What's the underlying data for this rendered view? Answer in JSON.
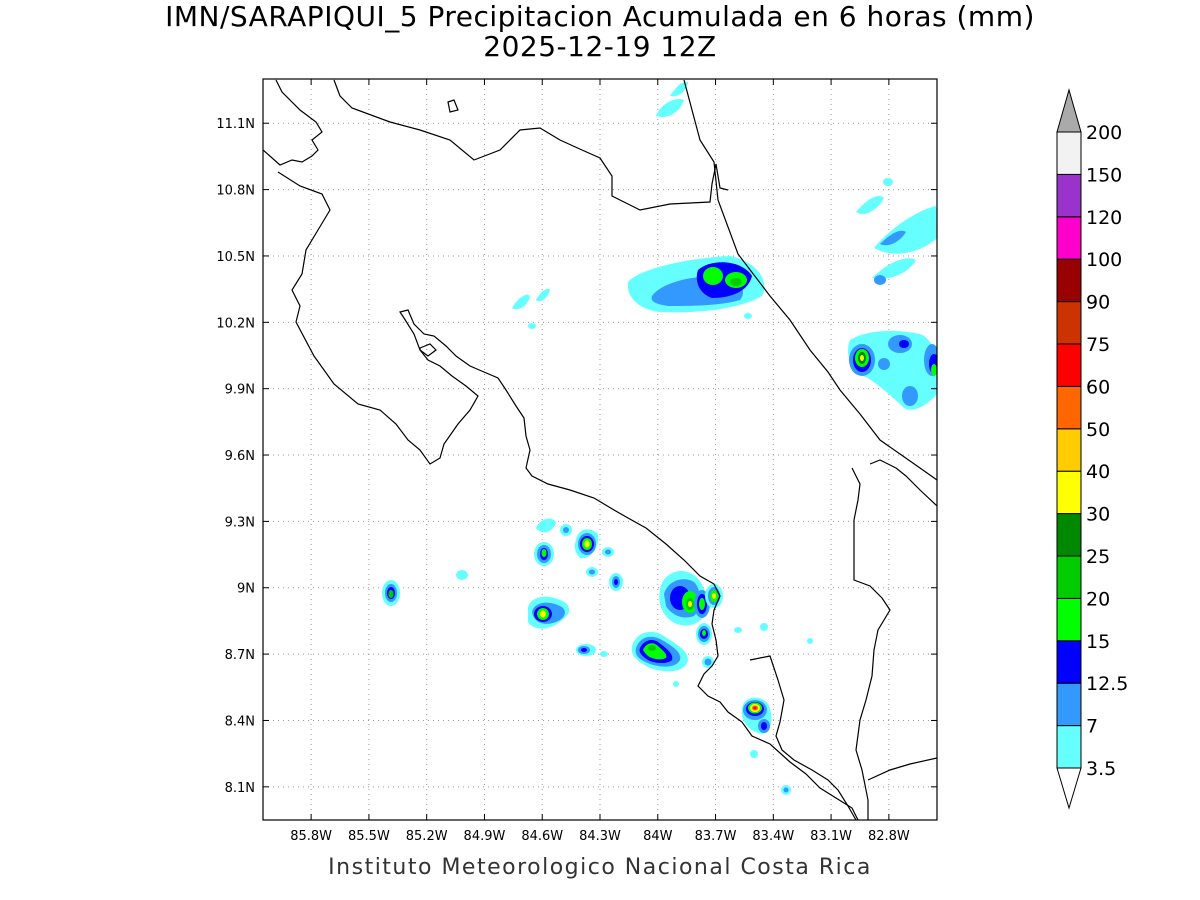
{
  "title": {
    "line1": "IMN/SARAPIQUI_5 Precipitacion Acumulada en 6 horas (mm)",
    "line2": "2025-12-19 12Z"
  },
  "footer": "Instituto Meteorologico Nacional Costa Rica",
  "map": {
    "lon_range": [
      -86.05,
      -82.55
    ],
    "lat_range": [
      7.95,
      11.3
    ],
    "lon_ticks": [
      {
        "value": -85.8,
        "label": "85.8W"
      },
      {
        "value": -85.5,
        "label": "85.5W"
      },
      {
        "value": -85.2,
        "label": "85.2W"
      },
      {
        "value": -84.9,
        "label": "84.9W"
      },
      {
        "value": -84.6,
        "label": "84.6W"
      },
      {
        "value": -84.3,
        "label": "84.3W"
      },
      {
        "value": -84.0,
        "label": "84W"
      },
      {
        "value": -83.7,
        "label": "83.7W"
      },
      {
        "value": -83.4,
        "label": "83.4W"
      },
      {
        "value": -83.1,
        "label": "83.1W"
      },
      {
        "value": -82.8,
        "label": "82.8W"
      }
    ],
    "lat_ticks": [
      {
        "value": 8.1,
        "label": "8.1N"
      },
      {
        "value": 8.4,
        "label": "8.4N"
      },
      {
        "value": 8.7,
        "label": "8.7N"
      },
      {
        "value": 9.0,
        "label": "9N"
      },
      {
        "value": 9.3,
        "label": "9.3N"
      },
      {
        "value": 9.6,
        "label": "9.6N"
      },
      {
        "value": 9.9,
        "label": "9.9N"
      },
      {
        "value": 10.2,
        "label": "10.2N"
      },
      {
        "value": 10.5,
        "label": "10.5N"
      },
      {
        "value": 10.8,
        "label": "10.8N"
      },
      {
        "value": 11.1,
        "label": "11.1N"
      }
    ],
    "grid": true
  },
  "legend": {
    "levels": [
      "3.5",
      "7",
      "12.5",
      "15",
      "20",
      "25",
      "30",
      "40",
      "50",
      "60",
      "75",
      "90",
      "100",
      "120",
      "150",
      "200"
    ],
    "colors": [
      "#ffffff",
      "#66ffff",
      "#3399ff",
      "#0000ff",
      "#00ff00",
      "#00cc00",
      "#008800",
      "#ffff00",
      "#ffcc00",
      "#ff6600",
      "#ff0000",
      "#cc3300",
      "#990000",
      "#ff00cc",
      "#9933cc",
      "#f2f2f2",
      "#aaaaaa"
    ]
  },
  "rain_cells": [
    {
      "lon": -84.55,
      "lat": 9.19,
      "level": 20
    },
    {
      "lon": -84.3,
      "lat": 9.23,
      "level": 30
    },
    {
      "lon": -84.55,
      "lat": 8.9,
      "level": 30
    },
    {
      "lon": -85.33,
      "lat": 9.01,
      "level": 25
    },
    {
      "lon": -83.95,
      "lat": 8.76,
      "level": 25
    },
    {
      "lon": -83.78,
      "lat": 8.96,
      "level": 25
    },
    {
      "lon": -83.65,
      "lat": 9.0,
      "level": 20
    },
    {
      "lon": -83.72,
      "lat": 8.82,
      "level": 20
    },
    {
      "lon": -83.48,
      "lat": 8.49,
      "level": 75
    },
    {
      "lon": -83.75,
      "lat": 10.45,
      "level": 20
    },
    {
      "lon": -83.55,
      "lat": 10.42,
      "level": 25
    },
    {
      "lon": -82.95,
      "lat": 10.05,
      "level": 30
    },
    {
      "lon": -82.58,
      "lat": 10.0,
      "level": 20
    }
  ]
}
